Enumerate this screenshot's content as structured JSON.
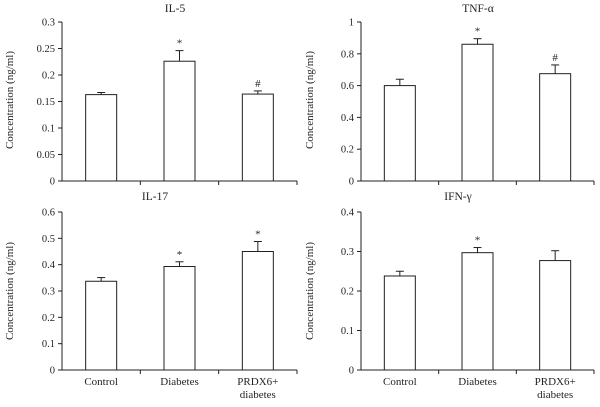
{
  "chart_data": [
    {
      "type": "bar",
      "title": "IL-5",
      "ylabel": "Concentration (ng/ml)",
      "categories": [
        "Control",
        "Diabetes",
        "PRDX6+ diabetes"
      ],
      "values": [
        0.163,
        0.226,
        0.164
      ],
      "errors": [
        0.004,
        0.02,
        0.006
      ],
      "significance": [
        "",
        "*",
        "#"
      ],
      "ylim": [
        0,
        0.3
      ],
      "yticks": [
        0,
        0.05,
        0.1,
        0.15,
        0.2,
        0.25,
        0.3
      ],
      "ytick_labels": [
        "0",
        "0.05",
        "0.1",
        "0.15",
        "0.2",
        "0.25",
        "0.3"
      ],
      "show_category_labels": false
    },
    {
      "type": "bar",
      "title": "TNF-α",
      "ylabel": "Concentration (ng/ml)",
      "categories": [
        "Control",
        "Diabetes",
        "PRDX6+ diabetes"
      ],
      "values": [
        0.6,
        0.86,
        0.675
      ],
      "errors": [
        0.04,
        0.035,
        0.055
      ],
      "significance": [
        "",
        "*",
        "#"
      ],
      "ylim": [
        0,
        1
      ],
      "yticks": [
        0,
        0.2,
        0.4,
        0.6,
        0.8,
        1
      ],
      "ytick_labels": [
        "0",
        "0.2",
        "0.4",
        "0.6",
        "0.8",
        "1"
      ],
      "show_category_labels": false
    },
    {
      "type": "bar",
      "title": "IL-17",
      "ylabel": "Concentration (ng/ml)",
      "categories": [
        "Control",
        "Diabetes",
        "PRDX6+ diabetes"
      ],
      "values": [
        0.337,
        0.393,
        0.45
      ],
      "errors": [
        0.014,
        0.018,
        0.038
      ],
      "significance": [
        "",
        "*",
        "*"
      ],
      "ylim": [
        0,
        0.6
      ],
      "yticks": [
        0,
        0.1,
        0.2,
        0.3,
        0.4,
        0.5,
        0.6
      ],
      "ytick_labels": [
        "0",
        "0.1",
        "0.2",
        "0.3",
        "0.4",
        "0.5",
        "0.6"
      ],
      "show_category_labels": true
    },
    {
      "type": "bar",
      "title": "IFN-γ",
      "ylabel": "Concentration (ng/ml)",
      "categories": [
        "Control",
        "Diabetes",
        "PRDX6+ diabetes"
      ],
      "values": [
        0.238,
        0.297,
        0.277
      ],
      "errors": [
        0.012,
        0.013,
        0.025
      ],
      "significance": [
        "",
        "*",
        ""
      ],
      "ylim": [
        0,
        0.4
      ],
      "yticks": [
        0,
        0.1,
        0.2,
        0.3,
        0.4
      ],
      "ytick_labels": [
        "0",
        "0.1",
        "0.2",
        "0.3",
        "0.4"
      ],
      "show_category_labels": true
    }
  ],
  "category_label_lines": [
    [
      "Control"
    ],
    [
      "Diabetes"
    ],
    [
      "PRDX6+",
      "diabetes"
    ]
  ]
}
